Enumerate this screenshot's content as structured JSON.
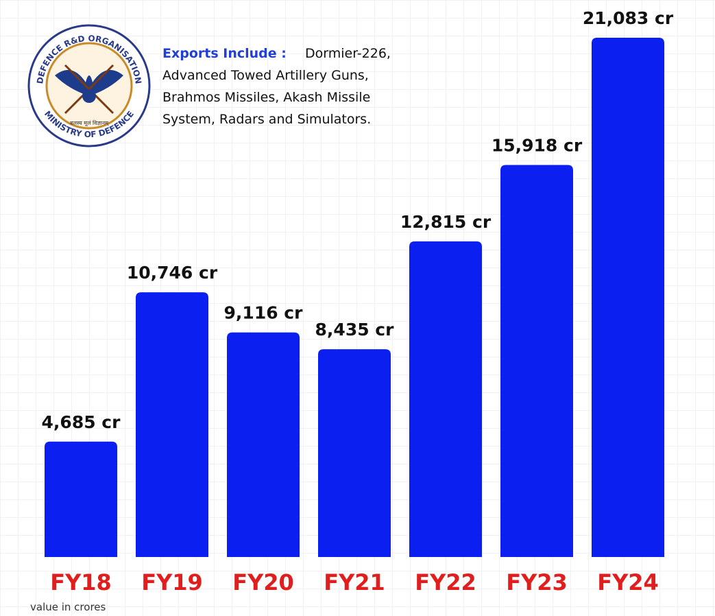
{
  "chart_data": {
    "type": "bar",
    "categories": [
      "FY18",
      "FY19",
      "FY20",
      "FY21",
      "FY22",
      "FY23",
      "FY24"
    ],
    "values": [
      4685,
      10746,
      9116,
      8435,
      12815,
      15918,
      21083
    ],
    "value_labels": [
      "4,685 cr",
      "10,746 cr",
      "9,116 cr",
      "8,435 cr",
      "12,815 cr",
      "15,918 cr",
      "21,083 cr"
    ],
    "color": "#0a1ff0",
    "category_color": "#e01e1e",
    "note_label": "Exports Include :",
    "note_lines": [
      "Dormier-226,",
      "Advanced Towed Artillery Guns,",
      "Brahmos Missiles, Akash Missile",
      "System, Radars and Simulators."
    ],
    "footnote": "value in crores",
    "logo": {
      "top_text": "DEFENCE R&D ORGANISATION",
      "bottom_text": "MINISTRY OF DEFENCE",
      "motto": "बलस्य मूलं विज्ञानम्"
    }
  }
}
